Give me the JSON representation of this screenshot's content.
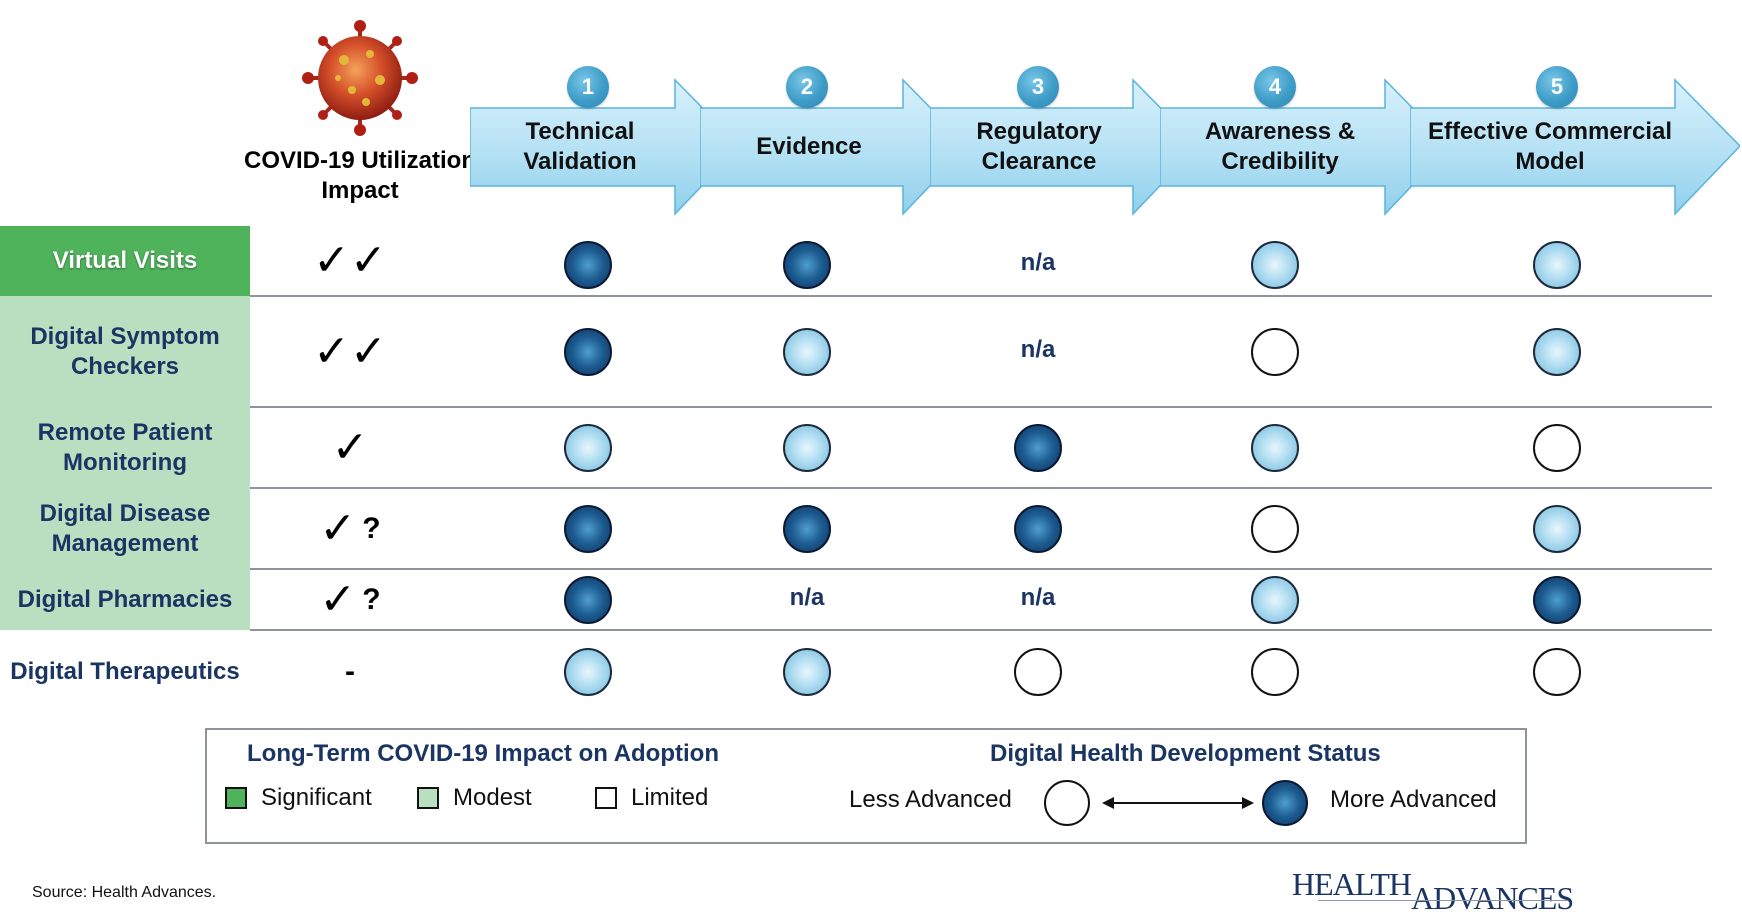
{
  "header": {
    "covid_title": "COVID-19 Utilization Impact",
    "steps": [
      {
        "number": "1",
        "label": "Technical Validation"
      },
      {
        "number": "2",
        "label": "Evidence"
      },
      {
        "number": "3",
        "label": "Regulatory Clearance"
      },
      {
        "number": "4",
        "label": "Awareness & Credibility"
      },
      {
        "number": "5",
        "label": "Effective Commercial Model"
      }
    ]
  },
  "rows": [
    {
      "label": "Virtual Visits",
      "impact_level": "significant",
      "impact": {
        "checks": "✓✓",
        "question": ""
      },
      "status": [
        "high",
        "high",
        "n/a",
        "mid",
        "mid"
      ]
    },
    {
      "label": "Digital Symptom Checkers",
      "impact_level": "modest",
      "impact": {
        "checks": "✓✓",
        "question": ""
      },
      "status": [
        "high",
        "mid",
        "n/a",
        "low",
        "mid"
      ]
    },
    {
      "label": "Remote Patient Monitoring",
      "impact_level": "modest",
      "impact": {
        "checks": "✓",
        "question": ""
      },
      "status": [
        "mid",
        "mid",
        "high",
        "mid",
        "low"
      ]
    },
    {
      "label": "Digital Disease Management",
      "impact_level": "modest",
      "impact": {
        "checks": "✓",
        "question": "?"
      },
      "status": [
        "high",
        "high",
        "high",
        "low",
        "mid"
      ]
    },
    {
      "label": "Digital Pharmacies",
      "impact_level": "modest",
      "impact": {
        "checks": "✓",
        "question": "?"
      },
      "status": [
        "high",
        "n/a",
        "n/a",
        "mid",
        "high"
      ]
    },
    {
      "label": "Digital Therapeutics",
      "impact_level": "limited",
      "impact": {
        "checks": "-",
        "question": ""
      },
      "status": [
        "mid",
        "mid",
        "low",
        "low",
        "low"
      ]
    }
  ],
  "na_text": "n/a",
  "legend": {
    "impact_title": "Long-Term COVID-19 Impact on Adoption",
    "significant": "Significant",
    "modest": "Modest",
    "limited": "Limited",
    "status_title": "Digital Health Development Status",
    "less": "Less Advanced",
    "more": "More Advanced"
  },
  "colors": {
    "significant": "#4fb35c",
    "modest": "#b8e0c0",
    "limited": "#ffffff",
    "navy": "#1a3563",
    "arrow": "#b7e3f5"
  },
  "source": "Source:  Health Advances.",
  "logo": {
    "line1": "HEALTH",
    "line2": "ADVANCES"
  }
}
